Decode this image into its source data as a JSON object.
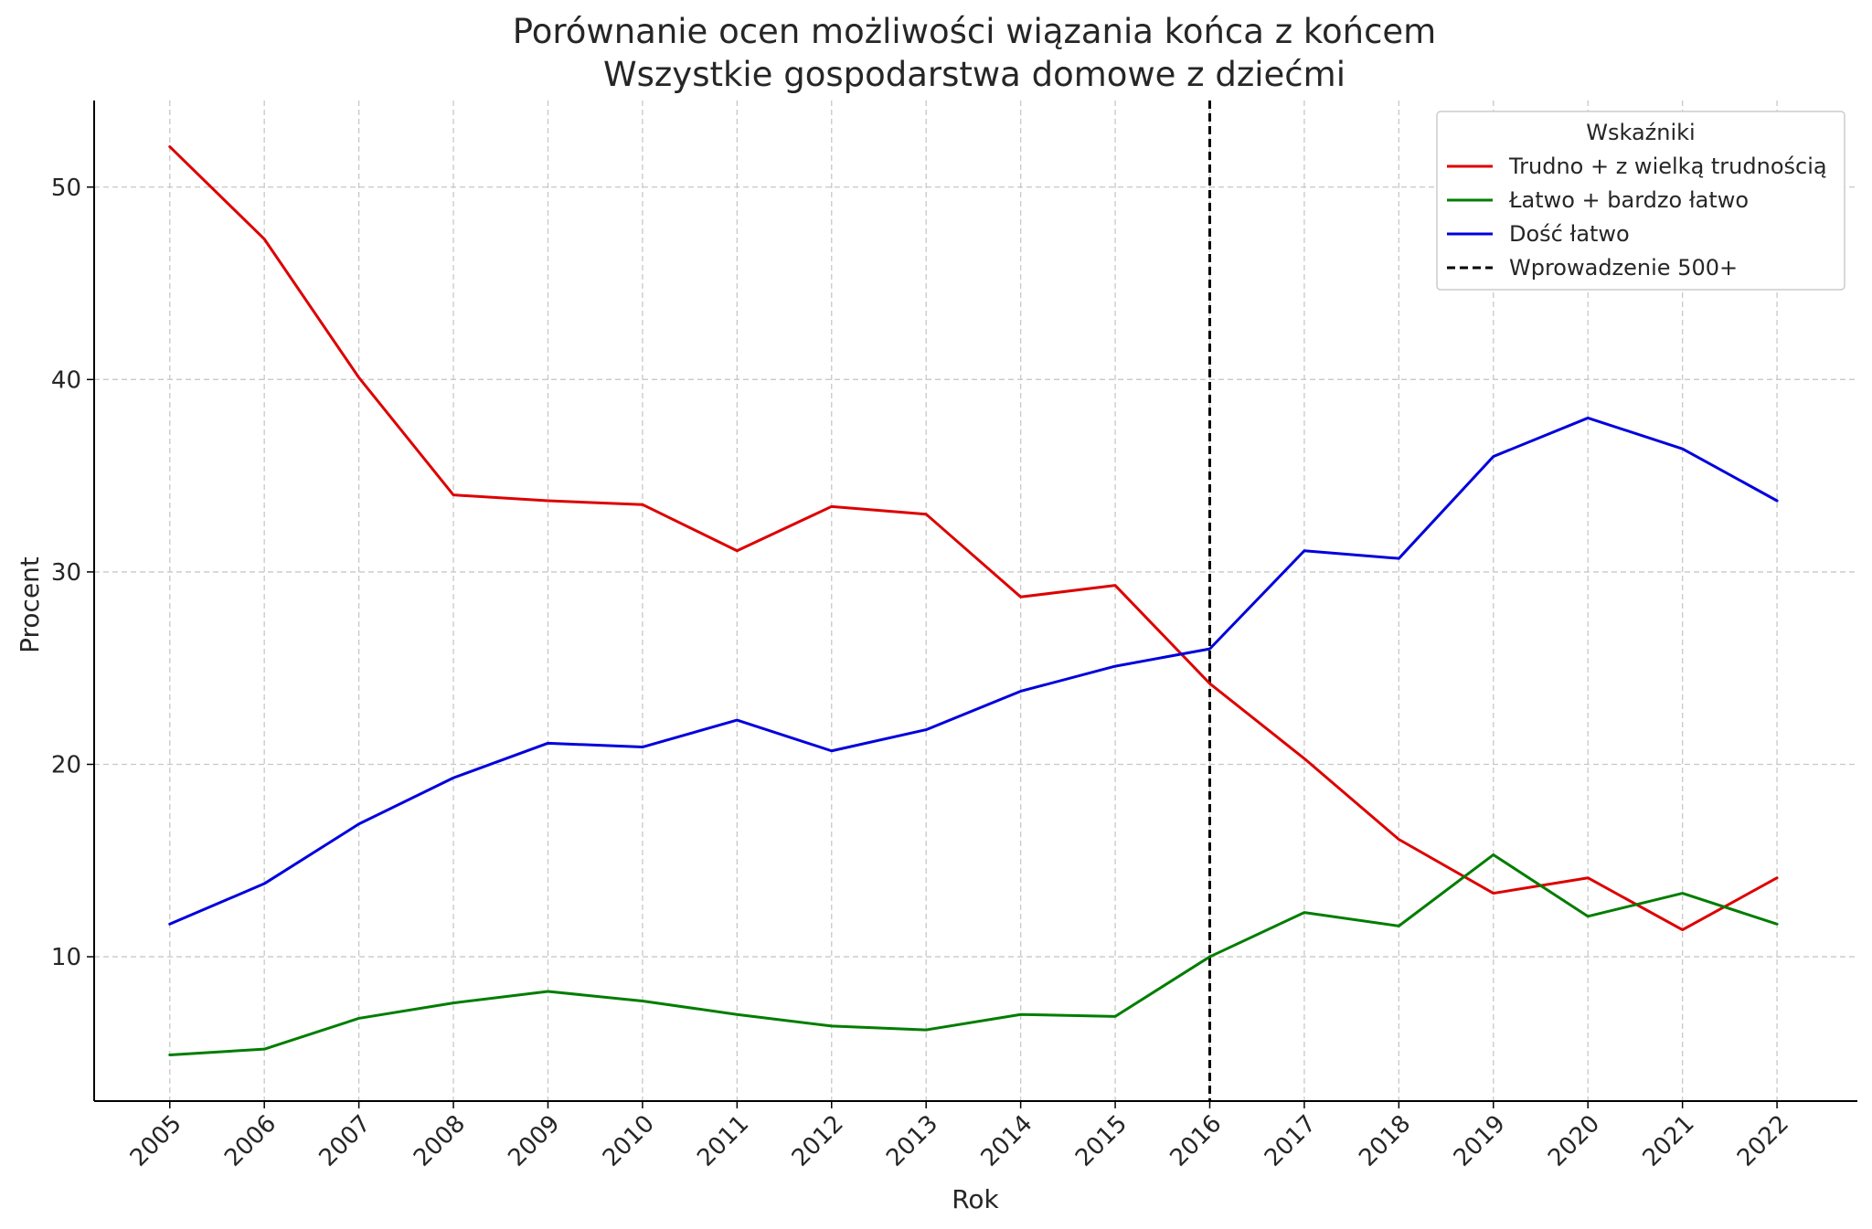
{
  "chart_data": {
    "type": "line",
    "title_line1": "Porównanie ocen możliwości wiązania końca z końcem",
    "title_line2": "Wszystkie gospodarstwa domowe z dziećmi",
    "xlabel": "Rok",
    "ylabel": "Procent",
    "x": [
      2005,
      2006,
      2007,
      2008,
      2009,
      2010,
      2011,
      2012,
      2013,
      2014,
      2015,
      2016,
      2017,
      2018,
      2019,
      2020,
      2021,
      2022
    ],
    "x_tick_labels": [
      "2005",
      "2006",
      "2007",
      "2008",
      "2009",
      "2010",
      "2011",
      "2012",
      "2013",
      "2014",
      "2015",
      "2016",
      "2017",
      "2018",
      "2019",
      "2020",
      "2021",
      "2022"
    ],
    "yticks": [
      10,
      20,
      30,
      40,
      50
    ],
    "y_tick_labels": [
      "10",
      "20",
      "30",
      "40",
      "50"
    ],
    "ylim": [
      2.5,
      54.5
    ],
    "xlim": [
      2004.2,
      2022.85
    ],
    "grid": true,
    "legend": {
      "title": "Wskaźniki",
      "position": "top-right"
    },
    "series": [
      {
        "name": "Trudno + z wielką trudnością",
        "color": "#dd0000",
        "values": [
          52.1,
          47.3,
          40.1,
          34.0,
          33.7,
          33.5,
          31.1,
          33.4,
          33.0,
          28.7,
          29.3,
          24.2,
          20.3,
          16.1,
          13.3,
          14.1,
          11.4,
          14.1
        ]
      },
      {
        "name": "Łatwo + bardzo łatwo",
        "color": "#007d00",
        "values": [
          4.9,
          5.2,
          6.8,
          7.6,
          8.2,
          7.7,
          7.0,
          6.4,
          6.2,
          7.0,
          6.9,
          10.0,
          12.3,
          11.6,
          15.3,
          12.1,
          13.3,
          11.7
        ]
      },
      {
        "name": "Dość łatwo",
        "color": "#0000dd",
        "values": [
          11.7,
          13.8,
          16.9,
          19.3,
          21.1,
          20.9,
          22.3,
          20.7,
          21.8,
          23.8,
          25.1,
          26.0,
          31.1,
          30.7,
          36.0,
          38.0,
          36.4,
          33.7
        ]
      }
    ],
    "reference_line": {
      "name": "Wprowadzenie 500+",
      "x": 2016,
      "color": "#000000",
      "style": "dashed"
    }
  }
}
